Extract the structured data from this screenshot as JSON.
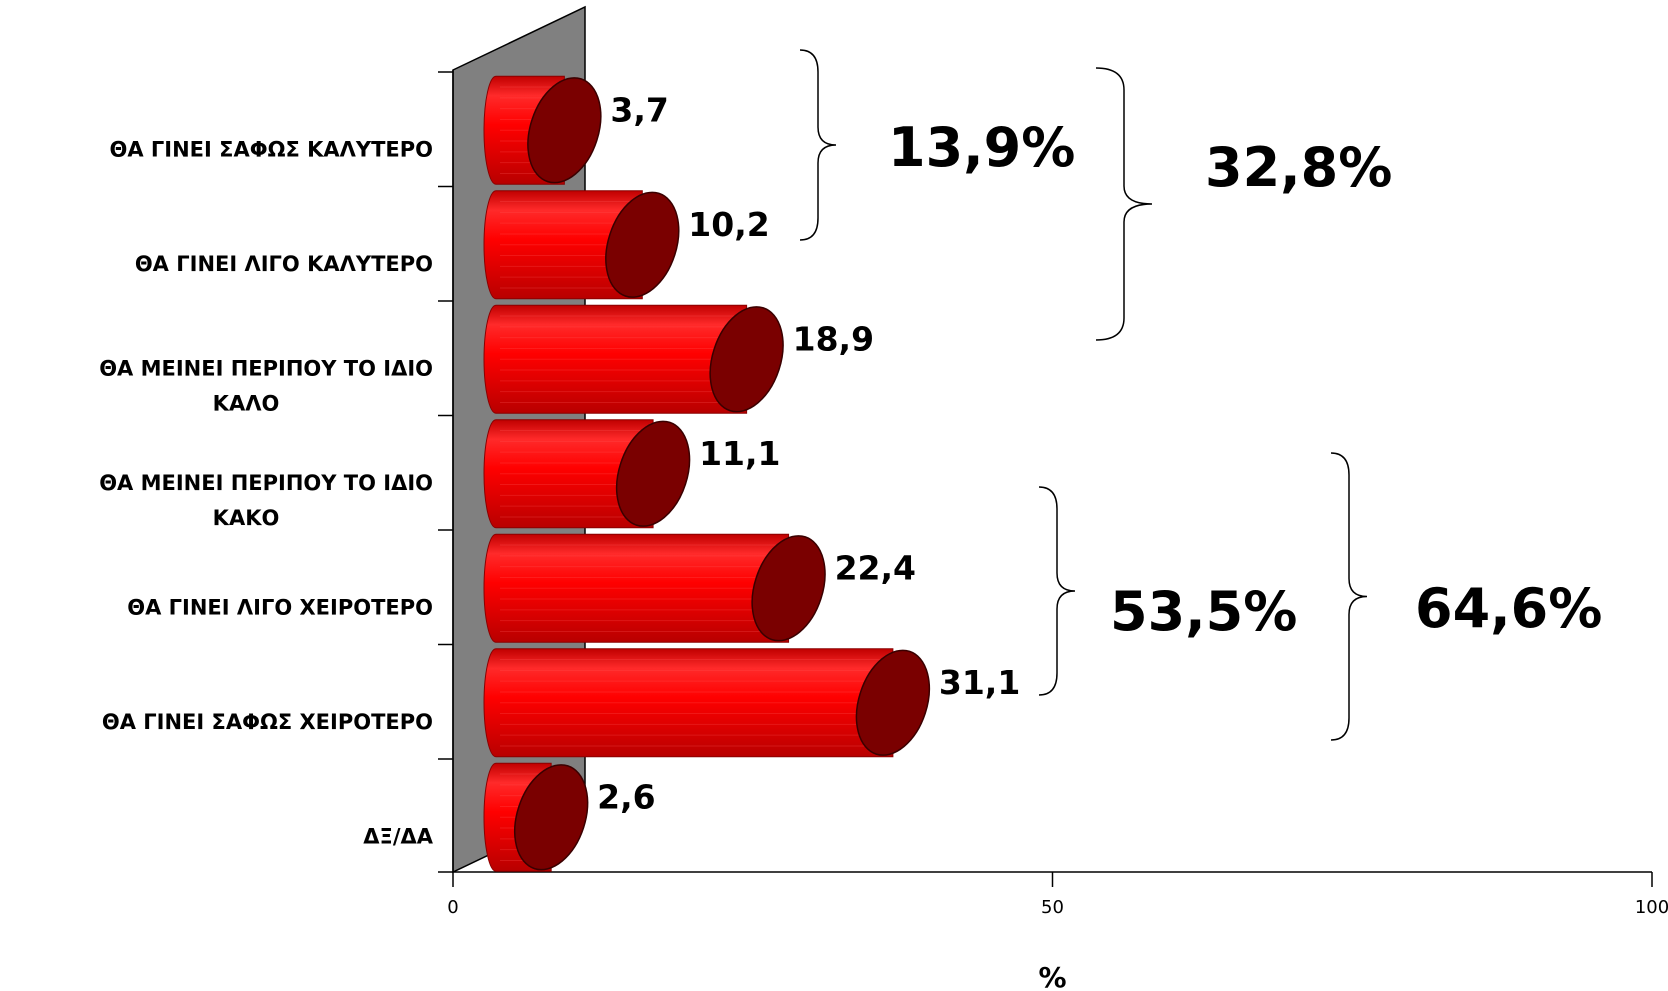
{
  "chart_data": {
    "type": "bar",
    "orientation": "horizontal",
    "categories": [
      [
        "ΘΑ ΓΙΝΕΙ ΣΑΦΩΣ ΚΑΛΥΤΕΡΟ"
      ],
      [
        "ΘΑ ΓΙΝΕΙ ΛΙΓΟ ΚΑΛΥΤΕΡΟ"
      ],
      [
        "ΘΑ ΜΕΙΝΕΙ ΠΕΡΙΠΟΥ ΤΟ ΙΔΙΟ",
        "ΚΑΛΟ"
      ],
      [
        "ΘΑ ΜΕΙΝΕΙ ΠΕΡΙΠΟΥ ΤΟ ΙΔΙΟ",
        "ΚΑΚΟ"
      ],
      [
        "ΘΑ ΓΙΝΕΙ ΛΙΓΟ ΧΕΙΡΟΤΕΡΟ"
      ],
      [
        "ΘΑ ΓΙΝΕΙ ΣΑΦΩΣ ΧΕΙΡΟΤΕΡΟ"
      ],
      [
        "ΔΞ/ΔΑ"
      ]
    ],
    "values": [
      3.7,
      10.2,
      18.9,
      11.1,
      22.4,
      31.1,
      2.6
    ],
    "value_labels": [
      "3,7",
      "10,2",
      "18,9",
      "11,1",
      "22,4",
      "31,1",
      "2,6"
    ],
    "xlim": [
      0,
      100
    ],
    "xticks": [
      0,
      50,
      100
    ],
    "xtick_labels": [
      "0",
      "50",
      "100"
    ],
    "xlabel": "%",
    "bar_color": "#e00000",
    "bar_end_color": "#7a0000",
    "wall_color": "#808080",
    "grid": false,
    "legend": "none",
    "groups": [
      {
        "label": "13,9%",
        "from": 0,
        "to": 1
      },
      {
        "label": "32,8%",
        "from": 0,
        "to": 2
      },
      {
        "label": "53,5%",
        "from": 4,
        "to": 5
      },
      {
        "label": "64,6%",
        "from": 3,
        "to": 5
      }
    ]
  }
}
